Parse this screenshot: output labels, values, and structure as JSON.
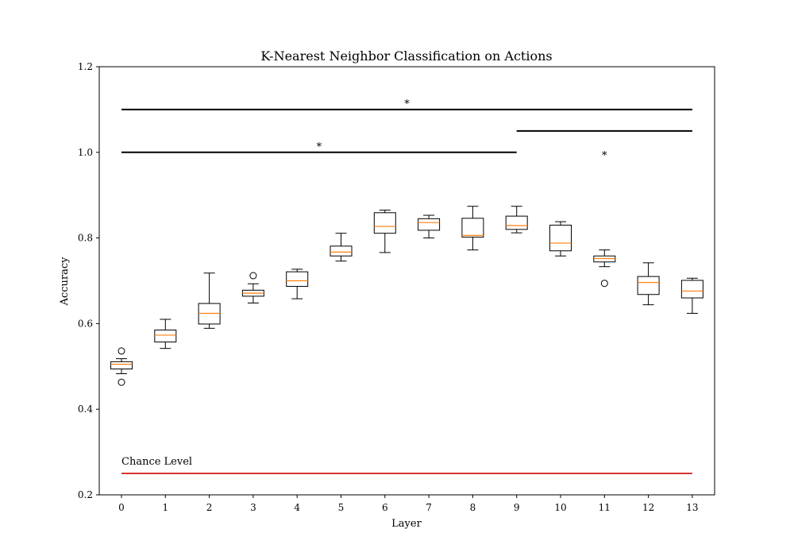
{
  "chart_data": {
    "type": "box",
    "title": "K-Nearest Neighbor Classification on Actions",
    "xlabel": "Layer",
    "ylabel": "Accuracy",
    "categories": [
      "0",
      "1",
      "2",
      "3",
      "4",
      "5",
      "6",
      "7",
      "8",
      "9",
      "10",
      "11",
      "12",
      "13"
    ],
    "ylim": [
      0.2,
      1.2
    ],
    "yticks": [
      "0.2",
      "0.4",
      "0.6",
      "0.8",
      "1.0",
      "1.2"
    ],
    "grid": false,
    "boxes": [
      {
        "layer": 0,
        "whisker_low": 0.483,
        "q1": 0.494,
        "median": 0.505,
        "q3": 0.511,
        "whisker_high": 0.518,
        "outliers": [
          0.536,
          0.463
        ]
      },
      {
        "layer": 1,
        "whisker_low": 0.542,
        "q1": 0.557,
        "median": 0.573,
        "q3": 0.585,
        "whisker_high": 0.61,
        "outliers": []
      },
      {
        "layer": 2,
        "whisker_low": 0.589,
        "q1": 0.599,
        "median": 0.624,
        "q3": 0.647,
        "whisker_high": 0.718,
        "outliers": []
      },
      {
        "layer": 3,
        "whisker_low": 0.648,
        "q1": 0.664,
        "median": 0.671,
        "q3": 0.678,
        "whisker_high": 0.693,
        "outliers": [
          0.712
        ]
      },
      {
        "layer": 4,
        "whisker_low": 0.658,
        "q1": 0.687,
        "median": 0.7,
        "q3": 0.721,
        "whisker_high": 0.727,
        "outliers": []
      },
      {
        "layer": 5,
        "whisker_low": 0.746,
        "q1": 0.758,
        "median": 0.767,
        "q3": 0.781,
        "whisker_high": 0.811,
        "outliers": []
      },
      {
        "layer": 6,
        "whisker_low": 0.766,
        "q1": 0.811,
        "median": 0.827,
        "q3": 0.859,
        "whisker_high": 0.865,
        "outliers": []
      },
      {
        "layer": 7,
        "whisker_low": 0.8,
        "q1": 0.818,
        "median": 0.836,
        "q3": 0.845,
        "whisker_high": 0.853,
        "outliers": []
      },
      {
        "layer": 8,
        "whisker_low": 0.772,
        "q1": 0.802,
        "median": 0.806,
        "q3": 0.846,
        "whisker_high": 0.874,
        "outliers": []
      },
      {
        "layer": 9,
        "whisker_low": 0.812,
        "q1": 0.82,
        "median": 0.829,
        "q3": 0.851,
        "whisker_high": 0.874,
        "outliers": []
      },
      {
        "layer": 10,
        "whisker_low": 0.758,
        "q1": 0.77,
        "median": 0.788,
        "q3": 0.83,
        "whisker_high": 0.838,
        "outliers": []
      },
      {
        "layer": 11,
        "whisker_low": 0.733,
        "q1": 0.744,
        "median": 0.752,
        "q3": 0.758,
        "whisker_high": 0.772,
        "outliers": [
          0.694
        ]
      },
      {
        "layer": 12,
        "whisker_low": 0.644,
        "q1": 0.668,
        "median": 0.696,
        "q3": 0.71,
        "whisker_high": 0.742,
        "outliers": []
      },
      {
        "layer": 13,
        "whisker_low": 0.624,
        "q1": 0.66,
        "median": 0.676,
        "q3": 0.701,
        "whisker_high": 0.706,
        "outliers": []
      }
    ],
    "chance_level": {
      "label": "Chance Level",
      "value": 0.25,
      "x_start": 0,
      "x_end": 13,
      "color": "#d62728"
    },
    "significance_bars": [
      {
        "y": 1.1,
        "x_start": 0,
        "x_end": 13,
        "label": "*",
        "label_y": 1.12,
        "label_x": 6.5
      },
      {
        "y": 1.0,
        "x_start": 0,
        "x_end": 9,
        "label": "*",
        "label_y": 1.02,
        "label_x": 4.5
      },
      {
        "y": 1.05,
        "x_start": 9,
        "x_end": 13,
        "label": "*",
        "label_y": 1.0,
        "label_x": 11
      }
    ],
    "colors": {
      "box": "#000000",
      "median": "#ff7f0e",
      "chance": "#d62728"
    }
  }
}
